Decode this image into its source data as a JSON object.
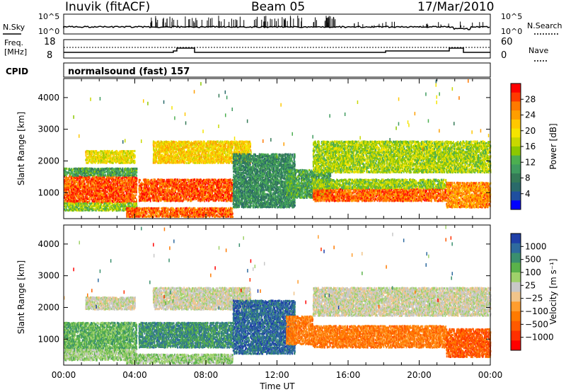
{
  "header": {
    "station": "Inuvik (fitACF)",
    "beam": "Beam 05",
    "date": "17/Mar/2010"
  },
  "summary": {
    "nsky_label": "N.Sky",
    "nsky_ticks": [
      "10^5",
      "10^0"
    ],
    "nsearch_label": "N.Search",
    "nsearch_ticks": [
      "10^5",
      "10^0"
    ],
    "freq_label": "Freq.",
    "freq_unit": "[MHz]",
    "freq_ticks": [
      "18",
      "8"
    ],
    "nave_label": "Nave",
    "nave_ticks": [
      "60",
      "0"
    ],
    "cpid_label": "CPID",
    "cpid_text": "normalsound (fast) 157"
  },
  "chart_data": [
    {
      "type": "heatmap",
      "name": "power",
      "ylabel": "Slant Range [km]",
      "xlabel": "",
      "yticks": [
        1000,
        2000,
        3000,
        4000
      ],
      "ylim": [
        180,
        4600
      ],
      "xlim": [
        0,
        24
      ],
      "colorbar": {
        "label": "Power [dB]",
        "ticks": [
          "28",
          "24",
          "20",
          "16",
          "12",
          "8",
          "4"
        ],
        "colors": [
          "#ff0000",
          "#ff3a00",
          "#ff7a00",
          "#ff9e00",
          "#ffc800",
          "#f5e400",
          "#c8d800",
          "#8cc800",
          "#4caf50",
          "#3f9b5f",
          "#347a57",
          "#2a6a6a",
          "#1f4f9f",
          "#0000ff"
        ]
      },
      "bands": [
        {
          "t0": 0,
          "t1": 4.1,
          "r0": 650,
          "r1": 1500,
          "v": 27
        },
        {
          "t0": 0,
          "t1": 4.1,
          "r0": 400,
          "r1": 650,
          "v": 14
        },
        {
          "t0": 0,
          "t1": 4.1,
          "r0": 1500,
          "r1": 1750,
          "v": 10
        },
        {
          "t0": 1.2,
          "t1": 4.0,
          "r0": 1900,
          "r1": 2300,
          "v": 18
        },
        {
          "t0": 4.2,
          "t1": 9.5,
          "r0": 700,
          "r1": 1400,
          "v": 27
        },
        {
          "t0": 5.0,
          "t1": 10.5,
          "r0": 1900,
          "r1": 2600,
          "v": 20
        },
        {
          "t0": 3.5,
          "t1": 9.5,
          "r0": 200,
          "r1": 500,
          "v": 26
        },
        {
          "t0": 9.5,
          "t1": 13.0,
          "r0": 500,
          "r1": 2200,
          "v": 8
        },
        {
          "t0": 12.5,
          "t1": 15.0,
          "r0": 800,
          "r1": 1700,
          "v": 10
        },
        {
          "t0": 14.0,
          "t1": 21.5,
          "r0": 700,
          "r1": 1100,
          "v": 26
        },
        {
          "t0": 14.0,
          "t1": 21.5,
          "r0": 1100,
          "r1": 1400,
          "v": 14
        },
        {
          "t0": 14.0,
          "t1": 24.0,
          "r0": 1600,
          "r1": 2600,
          "v": 15
        },
        {
          "t0": 21.5,
          "t1": 24.0,
          "r0": 500,
          "r1": 1300,
          "v": 24
        }
      ]
    },
    {
      "type": "heatmap",
      "name": "velocity",
      "ylabel": "Slant Range [km]",
      "xlabel": "Time UT",
      "yticks": [
        1000,
        2000,
        3000,
        4000
      ],
      "ylim": [
        180,
        4600
      ],
      "xlim": [
        0,
        24
      ],
      "xticks": [
        "00:00",
        "04:00",
        "08:00",
        "12:00",
        "16:00",
        "20:00",
        "00:00"
      ],
      "colorbar": {
        "label": "Velocity [m s⁻¹]",
        "ticks": [
          "1000",
          "500",
          "100",
          "25",
          "−25",
          "−100",
          "−500",
          "−1000"
        ],
        "colors": [
          "#1f3fa8",
          "#2e6a9e",
          "#3a8f6e",
          "#5ab24a",
          "#9fd16a",
          "#c8c8c8",
          "#f0c48a",
          "#ff9d2e",
          "#ff7a00",
          "#ff5a00",
          "#ff3000",
          "#ff0000"
        ]
      },
      "bands": [
        {
          "t0": 0,
          "t1": 4.1,
          "r0": 650,
          "r1": 1500,
          "v": 3
        },
        {
          "t0": 0,
          "t1": 4.1,
          "r0": 300,
          "r1": 650,
          "v": 4
        },
        {
          "t0": 1.2,
          "t1": 4.0,
          "r0": 1900,
          "r1": 2300,
          "v": 5
        },
        {
          "t0": 4.2,
          "t1": 9.5,
          "r0": 700,
          "r1": 1500,
          "v": 2
        },
        {
          "t0": 5.0,
          "t1": 10.5,
          "r0": 1900,
          "r1": 2600,
          "v": 5
        },
        {
          "t0": 3.5,
          "t1": 9.5,
          "r0": 200,
          "r1": 500,
          "v": 4
        },
        {
          "t0": 9.5,
          "t1": 13.0,
          "r0": 500,
          "r1": 2200,
          "v": 1
        },
        {
          "t0": 12.5,
          "t1": 14.0,
          "r0": 800,
          "r1": 1700,
          "v": 8
        },
        {
          "t0": 14.0,
          "t1": 21.5,
          "r0": 700,
          "r1": 1400,
          "v": 8
        },
        {
          "t0": 14.0,
          "t1": 24.0,
          "r0": 1700,
          "r1": 2600,
          "v": 5
        },
        {
          "t0": 21.5,
          "t1": 24.0,
          "r0": 400,
          "r1": 1300,
          "v": 9
        }
      ]
    }
  ]
}
